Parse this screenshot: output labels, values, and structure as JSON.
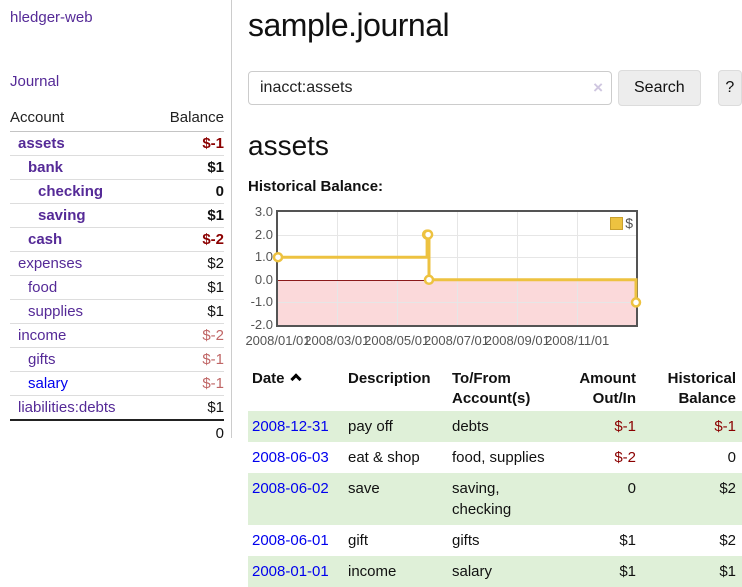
{
  "app": {
    "brand": "hledger-web",
    "nav": {
      "journal": "Journal"
    }
  },
  "sidebar": {
    "header": {
      "account": "Account",
      "balance": "Balance"
    },
    "accounts": [
      {
        "name": "assets",
        "balance": "$-1",
        "indent": 1,
        "bold": true
      },
      {
        "name": "bank",
        "balance": "$1",
        "indent": 2,
        "bold": true
      },
      {
        "name": "checking",
        "balance": "0",
        "indent": 3,
        "bold": true
      },
      {
        "name": "saving",
        "balance": "$1",
        "indent": 3,
        "bold": true
      },
      {
        "name": "cash",
        "balance": "$-2",
        "indent": 2,
        "bold": true
      },
      {
        "name": "expenses",
        "balance": "$2",
        "indent": 1,
        "bold": false
      },
      {
        "name": "food",
        "balance": "$1",
        "indent": 2,
        "bold": false
      },
      {
        "name": "supplies",
        "balance": "$1",
        "indent": 2,
        "bold": false
      },
      {
        "name": "income",
        "balance": "$-2",
        "indent": 1,
        "bold": false
      },
      {
        "name": "gifts",
        "balance": "$-1",
        "indent": 2,
        "bold": false
      },
      {
        "name": "salary",
        "balance": "$-1",
        "indent": 2,
        "bold": false,
        "unvisited": true
      },
      {
        "name": "liabilities:debts",
        "balance": "$1",
        "indent": 1,
        "bold": false
      }
    ],
    "total": "0"
  },
  "main": {
    "title": "sample.journal"
  },
  "search": {
    "value": "inacct:assets",
    "clear": "×",
    "submit": "Search",
    "help": "?"
  },
  "account_view": {
    "heading": "assets",
    "chart_title": "Historical Balance:"
  },
  "chart_data": {
    "type": "line",
    "step": true,
    "title": "Historical Balance:",
    "series": [
      {
        "name": "$",
        "points": [
          [
            "2008-01-01",
            1.0
          ],
          [
            "2008-06-01",
            2.0
          ],
          [
            "2008-06-02",
            2.0
          ],
          [
            "2008-06-03",
            0.0
          ],
          [
            "2008-12-31",
            -1.0
          ]
        ]
      }
    ],
    "xlim": [
      "2008-01-01",
      "2008-12-31"
    ],
    "ylim": [
      -2.0,
      3.0
    ],
    "y_ticks": [
      {
        "label": "3.0",
        "value": 3
      },
      {
        "label": "2.0",
        "value": 2
      },
      {
        "label": "1.0",
        "value": 1
      },
      {
        "label": "0.0",
        "value": 0
      },
      {
        "label": "-1.0",
        "value": -1
      },
      {
        "label": "-2.0",
        "value": -2
      }
    ],
    "x_ticks": [
      {
        "label": "2008/01/01",
        "date": "2008-01-01"
      },
      {
        "label": "2008/03/01",
        "date": "2008-03-01"
      },
      {
        "label": "2008/05/01",
        "date": "2008-05-01"
      },
      {
        "label": "2008/07/01",
        "date": "2008-07-01"
      },
      {
        "label": "2008/09/01",
        "date": "2008-09-01"
      },
      {
        "label": "2008/11/01",
        "date": "2008-11-01"
      }
    ],
    "legend": {
      "position": "top-right",
      "entries": [
        {
          "label": "$",
          "color": "#edc240"
        }
      ]
    },
    "grid": true,
    "colors": {
      "line": "#edc240",
      "marker_fill": "#ffffff",
      "negative_region": "#fbd9da",
      "zero_line": "#8b1a1a",
      "grid": "#e6e6e6",
      "border": "#545454"
    }
  },
  "register": {
    "header": {
      "date": "Date",
      "description": "Description",
      "account_line1": "To/From",
      "account_line2": "Account(s)",
      "amount_line1": "Amount",
      "amount_line2": "Out/In",
      "balance_line1": "Historical",
      "balance_line2": "Balance"
    },
    "rows": [
      {
        "date": "2008-12-31",
        "description": "pay off",
        "accounts": "debts",
        "amount": "$-1",
        "balance": "$-1"
      },
      {
        "date": "2008-06-03",
        "description": "eat & shop",
        "accounts": "food, supplies",
        "amount": "$-2",
        "balance": "0"
      },
      {
        "date": "2008-06-02",
        "description": "save",
        "accounts": "saving, checking",
        "amount": "0",
        "balance": "$2"
      },
      {
        "date": "2008-06-01",
        "description": "gift",
        "accounts": "gifts",
        "amount": "$1",
        "balance": "$2"
      },
      {
        "date": "2008-01-01",
        "description": "income",
        "accounts": "salary",
        "amount": "$1",
        "balance": "$1"
      }
    ]
  },
  "colors": {
    "purple_link": "#552a97",
    "blue_link": "#0000ee",
    "negative_dark": "#8b0000",
    "negative_light": "#c06666",
    "stripe_green": "#dff0d8"
  }
}
